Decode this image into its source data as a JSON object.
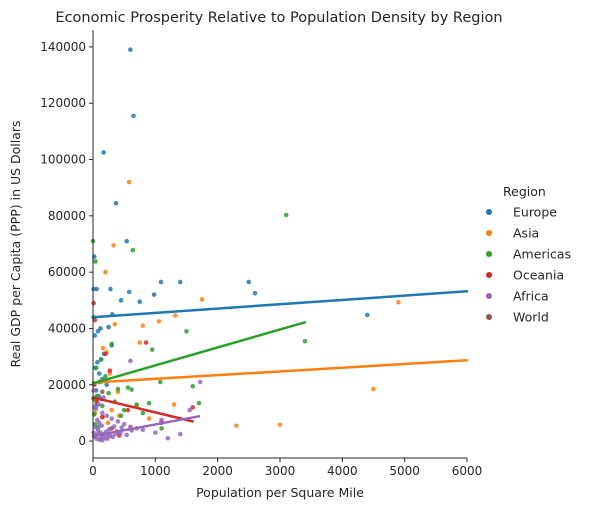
{
  "chart_data": {
    "type": "scatter",
    "title": "Economic Prosperity Relative to Population Density by Region",
    "xlabel": "Population per Square Mile",
    "ylabel": "Real GDP per Capita (PPP) in US Dollars",
    "xlim": [
      0,
      6000
    ],
    "ylim": [
      -6000,
      146000
    ],
    "xticks": [
      0,
      1000,
      2000,
      3000,
      4000,
      5000,
      6000
    ],
    "yticks": [
      0,
      20000,
      40000,
      60000,
      80000,
      100000,
      120000,
      140000
    ],
    "x_tick_labels": [
      "0",
      "1000",
      "2000",
      "3000",
      "4000",
      "5000",
      "6000"
    ],
    "y_tick_labels": [
      "0",
      "20000",
      "40000",
      "60000",
      "80000",
      "100000",
      "120000",
      "140000"
    ],
    "grid": false,
    "legend": {
      "title": "Region",
      "placement": "right"
    },
    "series": [
      {
        "name": "Europe",
        "color": "#1f77b4",
        "points": [
          [
            600,
            139000
          ],
          [
            650,
            115500
          ],
          [
            170,
            102500
          ],
          [
            370,
            84500
          ],
          [
            540,
            71000
          ],
          [
            20,
            65500
          ],
          [
            10,
            54000
          ],
          [
            60,
            54000
          ],
          [
            280,
            54000
          ],
          [
            580,
            53000
          ],
          [
            1090,
            56500
          ],
          [
            1400,
            56500
          ],
          [
            2500,
            56500
          ],
          [
            2600,
            52500
          ],
          [
            980,
            52000
          ],
          [
            750,
            49500
          ],
          [
            450,
            50000
          ],
          [
            4400,
            44800
          ],
          [
            310,
            45000
          ],
          [
            250,
            40500
          ],
          [
            120,
            40000
          ],
          [
            80,
            39000
          ],
          [
            30,
            37500
          ],
          [
            300,
            34000
          ],
          [
            180,
            31000
          ],
          [
            130,
            29000
          ],
          [
            70,
            28000
          ],
          [
            40,
            26000
          ],
          [
            100,
            24000
          ],
          [
            150,
            22000
          ],
          [
            220,
            20000
          ],
          [
            50,
            18000
          ],
          [
            90,
            16000
          ],
          [
            130,
            15000
          ],
          [
            60,
            13000
          ]
        ],
        "trend": {
          "x": [
            0,
            6000
          ],
          "y": [
            44000,
            53200
          ]
        }
      },
      {
        "name": "Asia",
        "color": "#ff7f0e",
        "points": [
          [
            580,
            92000
          ],
          [
            330,
            69500
          ],
          [
            200,
            60000
          ],
          [
            1750,
            50300
          ],
          [
            4900,
            49300
          ],
          [
            1320,
            44600
          ],
          [
            1060,
            42500
          ],
          [
            350,
            41500
          ],
          [
            800,
            41000
          ],
          [
            750,
            35000
          ],
          [
            160,
            33000
          ],
          [
            4500,
            18500
          ],
          [
            2300,
            5500
          ],
          [
            3000,
            5800
          ],
          [
            130,
            21000
          ],
          [
            400,
            17500
          ],
          [
            270,
            24000
          ],
          [
            300,
            11000
          ],
          [
            700,
            12500
          ],
          [
            420,
            9000
          ],
          [
            900,
            8000
          ],
          [
            1100,
            7000
          ],
          [
            150,
            8500
          ],
          [
            240,
            6500
          ],
          [
            600,
            5000
          ],
          [
            60,
            14000
          ],
          [
            30,
            10000
          ],
          [
            1300,
            13000
          ],
          [
            220,
            31500
          ]
        ],
        "trend": {
          "x": [
            0,
            6000
          ],
          "y": [
            20800,
            28700
          ]
        }
      },
      {
        "name": "Americas",
        "color": "#2ca02c",
        "points": [
          [
            3100,
            80300
          ],
          [
            0,
            71000
          ],
          [
            640,
            67800
          ],
          [
            40,
            63800
          ],
          [
            3400,
            35500
          ],
          [
            1500,
            39000
          ],
          [
            950,
            32500
          ],
          [
            300,
            34500
          ],
          [
            130,
            29000
          ],
          [
            50,
            26000
          ],
          [
            200,
            23000
          ],
          [
            100,
            21000
          ],
          [
            1080,
            21000
          ],
          [
            400,
            18500
          ],
          [
            560,
            19000
          ],
          [
            620,
            18300
          ],
          [
            1600,
            19500
          ],
          [
            250,
            17000
          ],
          [
            60,
            16000
          ],
          [
            10,
            15000
          ],
          [
            350,
            14000
          ],
          [
            700,
            13000
          ],
          [
            900,
            13500
          ],
          [
            1700,
            13500
          ],
          [
            150,
            12500
          ],
          [
            500,
            11000
          ],
          [
            800,
            10000
          ],
          [
            20,
            9500
          ],
          [
            450,
            9000
          ],
          [
            1100,
            4500
          ],
          [
            30,
            6000
          ],
          [
            80,
            5000
          ],
          [
            10,
            44000
          ]
        ],
        "trend": {
          "x": [
            0,
            3400
          ],
          "y": [
            20500,
            42200
          ]
        }
      },
      {
        "name": "Oceania",
        "color": "#d62728",
        "points": [
          [
            10,
            49000
          ],
          [
            30,
            43000
          ],
          [
            850,
            35000
          ],
          [
            200,
            31000
          ],
          [
            270,
            25000
          ],
          [
            1600,
            12000
          ],
          [
            1100,
            6500
          ],
          [
            560,
            11000
          ],
          [
            60,
            14000
          ],
          [
            150,
            8500
          ],
          [
            300,
            4500
          ],
          [
            20,
            20000
          ],
          [
            420,
            2000
          ]
        ],
        "trend": {
          "x": [
            0,
            1600
          ],
          "y": [
            15500,
            7000
          ]
        }
      },
      {
        "name": "Africa",
        "color": "#9467bd",
        "points": [
          [
            1720,
            21000
          ],
          [
            600,
            28500
          ],
          [
            50,
            11500
          ],
          [
            150,
            10000
          ],
          [
            220,
            9000
          ],
          [
            300,
            8000
          ],
          [
            400,
            7000
          ],
          [
            500,
            6000
          ],
          [
            600,
            5000
          ],
          [
            700,
            4500
          ],
          [
            800,
            4000
          ],
          [
            1000,
            3000
          ],
          [
            1200,
            1000
          ],
          [
            1400,
            2500
          ],
          [
            1550,
            11000
          ],
          [
            30,
            5000
          ],
          [
            80,
            4000
          ],
          [
            120,
            3000
          ],
          [
            180,
            2500
          ],
          [
            240,
            2000
          ],
          [
            320,
            1500
          ],
          [
            380,
            3500
          ],
          [
            460,
            4800
          ],
          [
            540,
            2200
          ],
          [
            620,
            3800
          ],
          [
            20,
            1500
          ],
          [
            60,
            800
          ],
          [
            100,
            6500
          ],
          [
            140,
            5500
          ],
          [
            200,
            1000
          ],
          [
            260,
            4200
          ],
          [
            340,
            5200
          ],
          [
            440,
            2800
          ],
          [
            90,
            13000
          ],
          [
            170,
            15500
          ],
          [
            1100,
            7500
          ],
          [
            10,
            3000
          ],
          [
            45,
            2000
          ],
          [
            75,
            2500
          ],
          [
            130,
            1200
          ],
          [
            165,
            2200
          ],
          [
            210,
            3300
          ],
          [
            230,
            900
          ],
          [
            280,
            1800
          ],
          [
            360,
            2600
          ],
          [
            10,
            18000
          ],
          [
            25,
            12000
          ],
          [
            70,
            7500
          ],
          [
            110,
            500
          ],
          [
            150,
            300
          ]
        ],
        "trend": {
          "x": [
            0,
            1700
          ],
          "y": [
            1800,
            8800
          ]
        }
      },
      {
        "name": "World",
        "color": "#8c564b",
        "points": [
          [
            150,
            17500
          ]
        ],
        "trend": null
      }
    ]
  }
}
